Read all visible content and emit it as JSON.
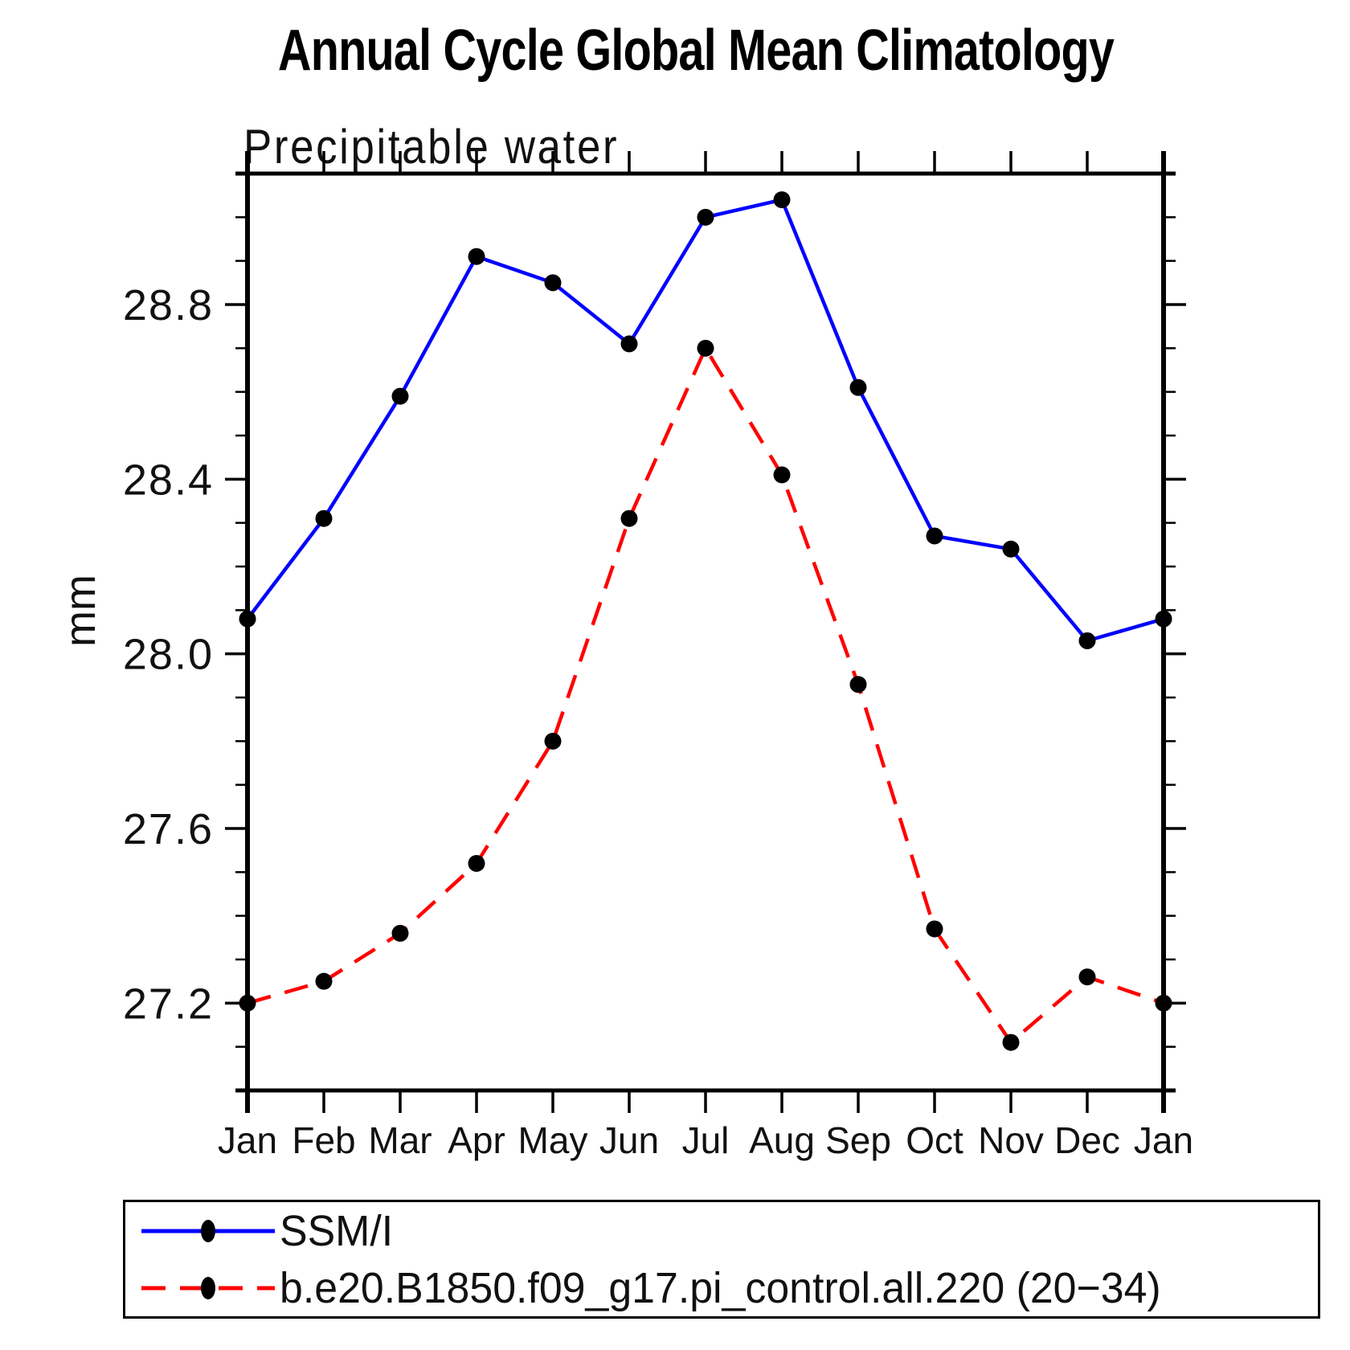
{
  "title": "Annual Cycle Global Mean Climatology",
  "subtitle": "Precipitable water",
  "ylabel": "mm",
  "colors": {
    "obs_line": "#0000ff",
    "model_line": "#ff0000",
    "marker": "#000000",
    "axis": "#000000"
  },
  "chart_data": {
    "type": "line",
    "categories": [
      "Jan",
      "Feb",
      "Mar",
      "Apr",
      "May",
      "Jun",
      "Jul",
      "Aug",
      "Sep",
      "Oct",
      "Nov",
      "Dec",
      "Jan"
    ],
    "series": [
      {
        "name": "SSM/I",
        "color": "#0000ff",
        "style": "solid",
        "marker": "filled-circle",
        "values": [
          28.08,
          28.31,
          28.59,
          28.91,
          28.85,
          28.71,
          29.0,
          29.04,
          28.61,
          28.27,
          28.24,
          28.03,
          28.08
        ]
      },
      {
        "name": "b.e20.B1850.f09_g17.pi_control.all.220 (20−34)",
        "color": "#ff0000",
        "style": "dashed",
        "marker": "filled-circle",
        "values": [
          27.2,
          27.25,
          27.36,
          27.52,
          27.8,
          28.31,
          28.7,
          28.41,
          27.93,
          27.37,
          27.11,
          27.26,
          27.2
        ]
      }
    ],
    "title": "Annual Cycle Global Mean Climatology",
    "subtitle": "Precipitable water",
    "xlabel": "",
    "ylabel": "mm",
    "ylim": [
      27.0,
      29.1
    ],
    "y_major_ticks": [
      27.2,
      27.6,
      28.0,
      28.4,
      28.8
    ],
    "y_tick_labels": [
      "27.2",
      "27.6",
      "28.0",
      "28.4",
      "28.8"
    ],
    "y_minor_step": 0.1,
    "grid": false,
    "legend_position": "bottom"
  }
}
